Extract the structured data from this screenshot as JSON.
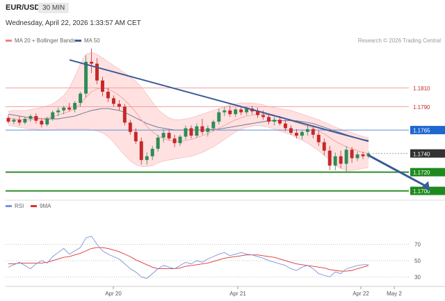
{
  "header": {
    "symbol": "EUR/USD",
    "timeframe": "30 MIN",
    "datetime": "Wednesday, April 22, 2026 1:33:57 AM CET",
    "credit": "Research © 2026 Trading Central"
  },
  "legend_main": [
    {
      "label": "MA 20 + Bollinger Bands",
      "color": "#f08080"
    },
    {
      "label": "MA 50",
      "color": "#3a5a9a"
    }
  ],
  "legend_rsi": [
    {
      "label": "RSI",
      "color": "#7a90d8"
    },
    {
      "label": "9MA",
      "color": "#e03030"
    }
  ],
  "colors": {
    "up": "#2e8b57",
    "down": "#c62828",
    "band": "#ffdcdc",
    "ma20": "#f2a0a0",
    "ma50": "#607090",
    "trend": "#3a5a9a",
    "support": "#2e8b2e",
    "resistance": "#f2a0a0",
    "pivot": "#5b8fd9",
    "current": "#333333"
  },
  "chart_data": [
    {
      "type": "candlestick",
      "title": "",
      "x_ticks": [
        "Apr 20",
        "Apr 21",
        "Apr 22",
        "May 2"
      ],
      "ylim": [
        1.1693,
        1.1855
      ],
      "levels": [
        {
          "value": 1.181,
          "label": "1.1810",
          "kind": "resistance"
        },
        {
          "value": 1.179,
          "label": "1.1790",
          "kind": "resistance"
        },
        {
          "value": 1.1765,
          "label": "1.1765",
          "kind": "pivot"
        },
        {
          "value": 1.174,
          "label": "1.1740",
          "kind": "current"
        },
        {
          "value": 1.172,
          "label": "1.1720",
          "kind": "support"
        },
        {
          "value": 1.17,
          "label": "1.1700",
          "kind": "support"
        }
      ],
      "trendline": [
        [
          0.17,
          1.184
        ],
        [
          1.0,
          1.1753
        ]
      ],
      "forecast_arrow": [
        [
          1.0,
          1.1738
        ],
        [
          1.17,
          1.17
        ]
      ],
      "candles": [
        [
          1.1778,
          1.1781,
          1.1772,
          1.1774
        ],
        [
          1.1774,
          1.1778,
          1.1771,
          1.1776
        ],
        [
          1.1776,
          1.178,
          1.177,
          1.1773
        ],
        [
          1.1773,
          1.1779,
          1.1771,
          1.1777
        ],
        [
          1.1777,
          1.1782,
          1.1774,
          1.178
        ],
        [
          1.178,
          1.1783,
          1.1772,
          1.1775
        ],
        [
          1.1775,
          1.1778,
          1.1768,
          1.1771
        ],
        [
          1.1771,
          1.1779,
          1.1769,
          1.1777
        ],
        [
          1.1777,
          1.1786,
          1.1775,
          1.1784
        ],
        [
          1.1784,
          1.1789,
          1.178,
          1.1786
        ],
        [
          1.1786,
          1.1791,
          1.1782,
          1.1789
        ],
        [
          1.1789,
          1.1794,
          1.1785,
          1.1787
        ],
        [
          1.1787,
          1.1796,
          1.1784,
          1.1794
        ],
        [
          1.1794,
          1.1806,
          1.179,
          1.1804
        ],
        [
          1.1804,
          1.1845,
          1.18,
          1.1838
        ],
        [
          1.1838,
          1.1852,
          1.1826,
          1.1836
        ],
        [
          1.1836,
          1.1842,
          1.1814,
          1.1818
        ],
        [
          1.1818,
          1.1822,
          1.1801,
          1.1806
        ],
        [
          1.1806,
          1.181,
          1.1795,
          1.1799
        ],
        [
          1.1799,
          1.1802,
          1.179,
          1.1793
        ],
        [
          1.1793,
          1.1797,
          1.1786,
          1.179
        ],
        [
          1.179,
          1.1793,
          1.177,
          1.1773
        ],
        [
          1.1773,
          1.1776,
          1.176,
          1.1763
        ],
        [
          1.1763,
          1.1767,
          1.175,
          1.1753
        ],
        [
          1.1753,
          1.1757,
          1.1728,
          1.1733
        ],
        [
          1.1733,
          1.1741,
          1.1728,
          1.1737
        ],
        [
          1.1737,
          1.1748,
          1.1733,
          1.1745
        ],
        [
          1.1745,
          1.176,
          1.1742,
          1.1757
        ],
        [
          1.1757,
          1.1766,
          1.1752,
          1.1762
        ],
        [
          1.1762,
          1.1765,
          1.1754,
          1.1756
        ],
        [
          1.1756,
          1.176,
          1.1747,
          1.1751
        ],
        [
          1.1751,
          1.176,
          1.1748,
          1.1758
        ],
        [
          1.1758,
          1.177,
          1.1755,
          1.1767
        ],
        [
          1.1767,
          1.177,
          1.1756,
          1.1759
        ],
        [
          1.1759,
          1.1772,
          1.1757,
          1.1769
        ],
        [
          1.1769,
          1.1777,
          1.176,
          1.1763
        ],
        [
          1.1763,
          1.177,
          1.1758,
          1.1767
        ],
        [
          1.1767,
          1.1776,
          1.1764,
          1.1774
        ],
        [
          1.1774,
          1.1788,
          1.1771,
          1.1784
        ],
        [
          1.1784,
          1.179,
          1.178,
          1.1786
        ],
        [
          1.1786,
          1.1791,
          1.1779,
          1.1782
        ],
        [
          1.1782,
          1.1789,
          1.1779,
          1.1787
        ],
        [
          1.1787,
          1.179,
          1.1781,
          1.1784
        ],
        [
          1.1784,
          1.179,
          1.1781,
          1.1788
        ],
        [
          1.1788,
          1.1791,
          1.1782,
          1.1785
        ],
        [
          1.1785,
          1.1789,
          1.1778,
          1.1781
        ],
        [
          1.1781,
          1.1786,
          1.1776,
          1.1779
        ],
        [
          1.1779,
          1.1782,
          1.1771,
          1.1774
        ],
        [
          1.1774,
          1.1779,
          1.177,
          1.1776
        ],
        [
          1.1776,
          1.178,
          1.177,
          1.1772
        ],
        [
          1.1772,
          1.1776,
          1.1764,
          1.1767
        ],
        [
          1.1767,
          1.177,
          1.176,
          1.1762
        ],
        [
          1.1762,
          1.1766,
          1.1756,
          1.1759
        ],
        [
          1.1759,
          1.1765,
          1.1755,
          1.1763
        ],
        [
          1.1763,
          1.177,
          1.1759,
          1.1766
        ],
        [
          1.1766,
          1.177,
          1.1756,
          1.176
        ],
        [
          1.176,
          1.1764,
          1.1748,
          1.1752
        ],
        [
          1.1752,
          1.1756,
          1.1738,
          1.1743
        ],
        [
          1.1743,
          1.1748,
          1.1722,
          1.1727
        ],
        [
          1.1727,
          1.1741,
          1.1722,
          1.1737
        ],
        [
          1.1737,
          1.1743,
          1.1724,
          1.1729
        ],
        [
          1.1729,
          1.1748,
          1.172,
          1.1744
        ],
        [
          1.1744,
          1.1747,
          1.173,
          1.1735
        ],
        [
          1.1735,
          1.1742,
          1.1732,
          1.1739
        ],
        [
          1.1739,
          1.1742,
          1.1734,
          1.1737
        ],
        [
          1.1737,
          1.1742,
          1.1735,
          1.174
        ]
      ],
      "ma20": [
        1.1778,
        1.1777,
        1.1776,
        1.1776,
        1.1776,
        1.1777,
        1.1777,
        1.1778,
        1.1779,
        1.1781,
        1.1783,
        1.1785,
        1.1788,
        1.1793,
        1.18,
        1.1806,
        1.1809,
        1.181,
        1.1809,
        1.1806,
        1.1802,
        1.1797,
        1.1791,
        1.1784,
        1.1776,
        1.1769,
        1.1763,
        1.1759,
        1.1756,
        1.1754,
        1.1753,
        1.1753,
        1.1754,
        1.1755,
        1.1757,
        1.1759,
        1.1761,
        1.1764,
        1.1767,
        1.177,
        1.1773,
        1.1776,
        1.1778,
        1.178,
        1.1781,
        1.1782,
        1.1782,
        1.1781,
        1.178,
        1.1779,
        1.1777,
        1.1775,
        1.1773,
        1.1771,
        1.1769,
        1.1767,
        1.1764,
        1.1761,
        1.1757,
        1.1753,
        1.175,
        1.1747,
        1.1745,
        1.1743,
        1.1741,
        1.174
      ],
      "bb_upper": [
        1.1785,
        1.1786,
        1.1786,
        1.1786,
        1.1787,
        1.1788,
        1.1789,
        1.1791,
        1.1793,
        1.1797,
        1.1802,
        1.181,
        1.1822,
        1.1836,
        1.1846,
        1.1848,
        1.1846,
        1.1842,
        1.1838,
        1.1834,
        1.183,
        1.1826,
        1.1822,
        1.1817,
        1.1811,
        1.1803,
        1.1795,
        1.1787,
        1.1782,
        1.1778,
        1.1776,
        1.1776,
        1.1777,
        1.1778,
        1.178,
        1.1782,
        1.1784,
        1.1786,
        1.1788,
        1.179,
        1.1792,
        1.1793,
        1.1794,
        1.1794,
        1.1794,
        1.1793,
        1.1792,
        1.179,
        1.1789,
        1.1788,
        1.1787,
        1.1786,
        1.1784,
        1.1782,
        1.178,
        1.1778,
        1.1776,
        1.1773,
        1.1771,
        1.1768,
        1.1766,
        1.1764,
        1.1762,
        1.176,
        1.1758,
        1.1757
      ],
      "bb_lower": [
        1.177,
        1.1769,
        1.1768,
        1.1767,
        1.1766,
        1.1766,
        1.1765,
        1.1765,
        1.1765,
        1.1766,
        1.1766,
        1.1766,
        1.1766,
        1.1766,
        1.1766,
        1.1765,
        1.1764,
        1.1762,
        1.1758,
        1.1752,
        1.1745,
        1.1738,
        1.1732,
        1.1728,
        1.1726,
        1.1726,
        1.1727,
        1.173,
        1.1732,
        1.1733,
        1.1734,
        1.1735,
        1.1736,
        1.1737,
        1.1739,
        1.1741,
        1.1744,
        1.1747,
        1.1751,
        1.1755,
        1.1759,
        1.1763,
        1.1766,
        1.1768,
        1.1769,
        1.177,
        1.1769,
        1.1768,
        1.1766,
        1.1764,
        1.1762,
        1.176,
        1.1757,
        1.1754,
        1.1751,
        1.1747,
        1.1743,
        1.1738,
        1.1733,
        1.1727,
        1.1724,
        1.1722,
        1.1722,
        1.1723,
        1.1724,
        1.1725
      ],
      "ma50": [
        1.1782,
        1.1781,
        1.178,
        1.1779,
        1.1778,
        1.1778,
        1.1777,
        1.1777,
        1.1777,
        1.1777,
        1.1778,
        1.1779,
        1.178,
        1.1782,
        1.1784,
        1.1786,
        1.1787,
        1.1788,
        1.1788,
        1.1787,
        1.1786,
        1.1784,
        1.1781,
        1.1778,
        1.1775,
        1.1772,
        1.177,
        1.1768,
        1.1767,
        1.1766,
        1.1765,
        1.1765,
        1.1765,
        1.1765,
        1.1765,
        1.1765,
        1.1765,
        1.1766,
        1.1766,
        1.1767,
        1.1768,
        1.1769,
        1.177,
        1.1771,
        1.1772,
        1.1773,
        1.1774,
        1.1775,
        1.1775,
        1.1775,
        1.1775,
        1.1775,
        1.1775,
        1.1774,
        1.1773,
        1.1772,
        1.177,
        1.1768,
        1.1766,
        1.1764,
        1.1762,
        1.176,
        1.1758,
        1.1756,
        1.1755,
        1.1754
      ]
    },
    {
      "type": "line",
      "title": "",
      "ylim": [
        20,
        85
      ],
      "y_ticks": [
        30,
        50,
        70
      ],
      "series": [
        {
          "name": "RSI",
          "values": [
            42,
            45,
            48,
            44,
            40,
            46,
            50,
            47,
            55,
            60,
            65,
            58,
            62,
            66,
            78,
            80,
            70,
            62,
            58,
            55,
            52,
            46,
            40,
            36,
            30,
            28,
            34,
            40,
            44,
            42,
            40,
            44,
            48,
            46,
            50,
            48,
            52,
            55,
            58,
            60,
            56,
            58,
            60,
            58,
            57,
            55,
            53,
            50,
            48,
            46,
            44,
            40,
            38,
            42,
            44,
            40,
            34,
            32,
            30,
            36,
            34,
            40,
            42,
            44,
            45,
            45
          ]
        },
        {
          "name": "9MA",
          "values": [
            46,
            46,
            47,
            47,
            47,
            47,
            47,
            48,
            50,
            52,
            54,
            55,
            57,
            59,
            62,
            65,
            66,
            66,
            65,
            63,
            61,
            58,
            55,
            51,
            48,
            45,
            42,
            40,
            40,
            40,
            40,
            41,
            43,
            44,
            45,
            46,
            47,
            49,
            51,
            53,
            54,
            55,
            56,
            57,
            57,
            57,
            56,
            55,
            54,
            52,
            50,
            48,
            46,
            45,
            44,
            43,
            42,
            41,
            39,
            38,
            37,
            37,
            38,
            40,
            42,
            44
          ]
        }
      ]
    }
  ]
}
